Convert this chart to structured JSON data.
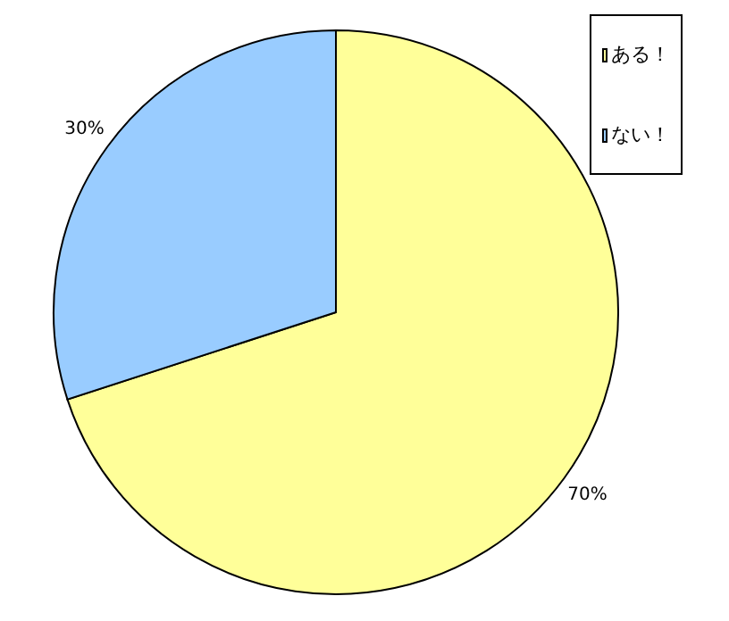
{
  "chart_data": {
    "type": "pie",
    "categories": [
      "ある！",
      "ない！"
    ],
    "values": [
      70,
      30
    ],
    "colors": [
      "#ffff99",
      "#99ccff"
    ],
    "value_labels": [
      "70%",
      "30%"
    ],
    "legend": "top right"
  }
}
